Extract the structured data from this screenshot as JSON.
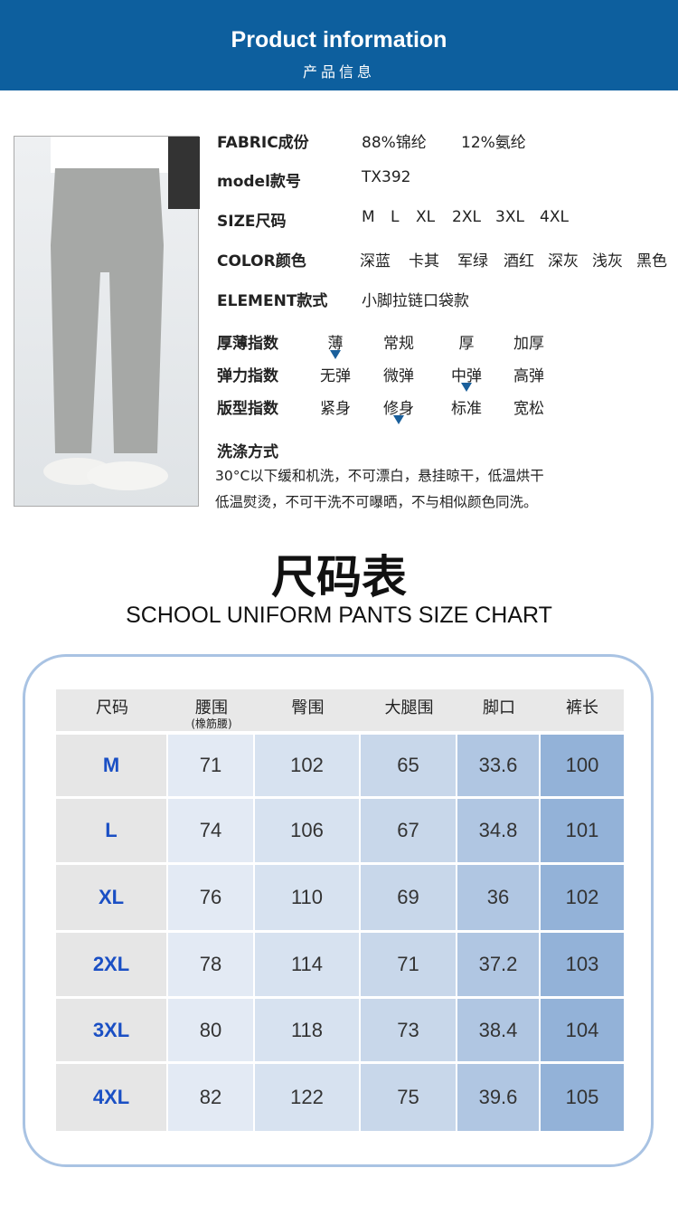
{
  "banner": {
    "title": "Product information",
    "subtitle": "产品信息"
  },
  "specs": [
    {
      "label": "FABRIC成份",
      "values": [
        "88%锦纶",
        "12%氨纶"
      ]
    },
    {
      "label": "model款号",
      "values": [
        "TX392"
      ]
    },
    {
      "label": "SIZE尺码",
      "values": [
        "M",
        "L",
        "XL",
        "2XL",
        "3XL",
        "4XL"
      ]
    },
    {
      "label": "COLOR颜色",
      "values": [
        "深蓝",
        "卡其",
        "军绿",
        "酒红",
        "深灰",
        "浅灰",
        "黑色"
      ]
    },
    {
      "label": "ELEMENT款式",
      "values": [
        "小脚拉链口袋款"
      ]
    }
  ],
  "indices": [
    {
      "label": "厚薄指数",
      "options": [
        "薄",
        "常规",
        "厚",
        "加厚"
      ],
      "selected": 0
    },
    {
      "label": "弹力指数",
      "options": [
        "无弹",
        "微弹",
        "中弹",
        "高弹"
      ],
      "selected": 2
    },
    {
      "label": "版型指数",
      "options": [
        "紧身",
        "修身",
        "标准",
        "宽松"
      ],
      "selected": 1
    }
  ],
  "wash": {
    "title": "洗涤方式",
    "line1": "30°C以下缓和机洗，不可漂白，悬挂晾干，低温烘干",
    "line2": "低温熨烫，不可干洗不可曝晒，不与相似颜色同洗。"
  },
  "chart": {
    "title": "尺码表",
    "subtitle": "SCHOOL UNIFORM PANTS SIZE CHART"
  },
  "table": {
    "headers": [
      "尺码",
      "腰围",
      "臀围",
      "大腿围",
      "脚口",
      "裤长"
    ],
    "header_note": "(橡筋腰)",
    "rows": [
      [
        "M",
        "71",
        "102",
        "65",
        "33.6",
        "100"
      ],
      [
        "L",
        "74",
        "106",
        "67",
        "34.8",
        "101"
      ],
      [
        "XL",
        "76",
        "110",
        "69",
        "36",
        "102"
      ],
      [
        "2XL",
        "78",
        "114",
        "71",
        "37.2",
        "103"
      ],
      [
        "3XL",
        "80",
        "118",
        "73",
        "38.4",
        "104"
      ],
      [
        "4XL",
        "82",
        "122",
        "75",
        "39.6",
        "105"
      ]
    ]
  },
  "colors": {
    "banner": "#0d5f9e",
    "marker": "#1a5f9b",
    "size_text": "#1a4fc4"
  }
}
